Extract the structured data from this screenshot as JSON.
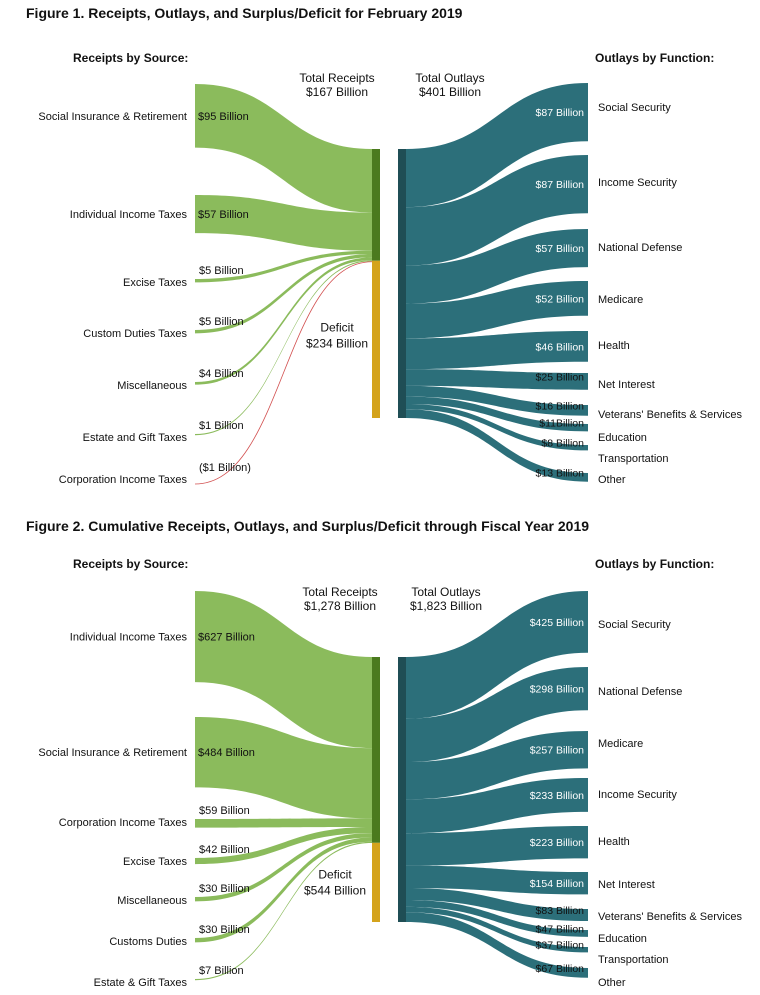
{
  "colors": {
    "receipt_flow": "#8bbb5c",
    "receipt_bar": "#4b7a1e",
    "deficit_bar": "#d4a31c",
    "outlay_flow": "#2c6f7a",
    "outlay_bar": "#1f4e55",
    "negative_flow": "#d25050"
  },
  "chart_data": [
    {
      "type": "sankey",
      "title": "Figure 1. Receipts, Outlays, and Surplus/Deficit for February 2019",
      "left_heading": "Receipts by Source:",
      "right_heading": "Outlays by Function:",
      "total_receipts": {
        "label": "Total Receipts",
        "value": "$167 Billion"
      },
      "total_outlays": {
        "label": "Total Outlays",
        "value": "$401 Billion"
      },
      "deficit": {
        "label": "Deficit",
        "value": "$234 Billion"
      },
      "receipts": [
        {
          "name": "Social Insurance & Retirement",
          "value": 95,
          "label": "$95 Billion"
        },
        {
          "name": "Individual Income Taxes",
          "value": 57,
          "label": "$57 Billion"
        },
        {
          "name": "Excise Taxes",
          "value": 5,
          "label": "$5 Billion"
        },
        {
          "name": "Custom Duties Taxes",
          "value": 5,
          "label": "$5 Billion"
        },
        {
          "name": "Miscellaneous",
          "value": 4,
          "label": "$4 Billion"
        },
        {
          "name": "Estate and Gift Taxes",
          "value": 1,
          "label": "$1 Billion"
        },
        {
          "name": "Corporation Income Taxes",
          "value": -1,
          "label": "($1 Billion)"
        }
      ],
      "outlays": [
        {
          "name": "Social Security",
          "value": 87,
          "label": "$87 Billion"
        },
        {
          "name": "Income Security",
          "value": 87,
          "label": "$87 Billion"
        },
        {
          "name": "National Defense",
          "value": 57,
          "label": "$57 Billion"
        },
        {
          "name": "Medicare",
          "value": 52,
          "label": "$52 Billion"
        },
        {
          "name": "Health",
          "value": 46,
          "label": "$46 Billion"
        },
        {
          "name": "Net Interest",
          "value": 25,
          "label": "$25 Billion"
        },
        {
          "name": "Veterans' Benefits & Services",
          "value": 16,
          "label": "$16 Billion"
        },
        {
          "name": "Education",
          "value": 11,
          "label": "$11Billion"
        },
        {
          "name": "Transportation",
          "value": 8,
          "label": "$8 Billion"
        },
        {
          "name": "Other",
          "value": 13,
          "label": "$13 Billion"
        }
      ]
    },
    {
      "type": "sankey",
      "title": "Figure 2. Cumulative Receipts, Outlays, and Surplus/Deficit through Fiscal Year 2019",
      "left_heading": "Receipts by Source:",
      "right_heading": "Outlays by Function:",
      "total_receipts": {
        "label": "Total Receipts",
        "value": "$1,278 Billion"
      },
      "total_outlays": {
        "label": "Total Outlays",
        "value": "$1,823 Billion"
      },
      "deficit": {
        "label": "Deficit",
        "value": "$544 Billion"
      },
      "receipts": [
        {
          "name": "Individual Income Taxes",
          "value": 627,
          "label": "$627 Billion"
        },
        {
          "name": "Social Insurance & Retirement",
          "value": 484,
          "label": "$484 Billion"
        },
        {
          "name": "Corporation Income Taxes",
          "value": 59,
          "label": "$59 Billion"
        },
        {
          "name": "Excise Taxes",
          "value": 42,
          "label": "$42 Billion"
        },
        {
          "name": "Miscellaneous",
          "value": 30,
          "label": "$30 Billion"
        },
        {
          "name": "Customs Duties",
          "value": 30,
          "label": "$30 Billion"
        },
        {
          "name": "Estate & Gift Taxes",
          "value": 7,
          "label": "$7 Billion"
        }
      ],
      "outlays": [
        {
          "name": "Social Security",
          "value": 425,
          "label": "$425 Billion"
        },
        {
          "name": "National Defense",
          "value": 298,
          "label": "$298 Billion"
        },
        {
          "name": "Medicare",
          "value": 257,
          "label": "$257 Billion"
        },
        {
          "name": "Income Security",
          "value": 233,
          "label": "$233 Billion"
        },
        {
          "name": "Health",
          "value": 223,
          "label": "$223 Billion"
        },
        {
          "name": "Net Interest",
          "value": 154,
          "label": "$154 Billion"
        },
        {
          "name": "Veterans' Benefits & Services",
          "value": 83,
          "label": "$83 Billion"
        },
        {
          "name": "Education",
          "value": 47,
          "label": "$47 Billion"
        },
        {
          "name": "Transportation",
          "value": 37,
          "label": "$37 Billion"
        },
        {
          "name": "Other",
          "value": 67,
          "label": "$67 Billion"
        }
      ]
    }
  ]
}
